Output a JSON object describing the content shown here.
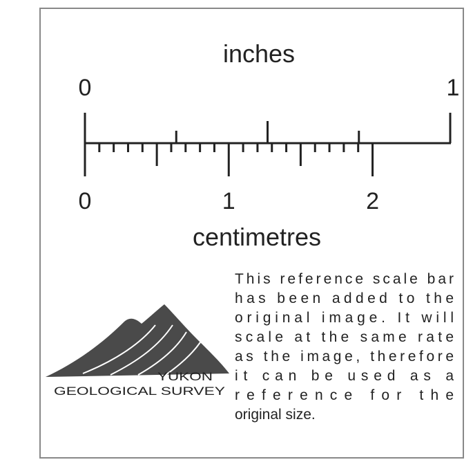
{
  "scale_bar": {
    "inches": {
      "title": "inches",
      "labels": [
        "0",
        "1"
      ]
    },
    "centimetres": {
      "title": "centimetres",
      "labels": [
        "0",
        "1",
        "2"
      ]
    }
  },
  "logo": {
    "line1": "YUKON",
    "line2": "GEOLOGICAL SURVEY"
  },
  "note": {
    "lines": [
      "This reference scale bar",
      "has been added to the",
      "original image. It will",
      "scale at the same rate",
      "as the image, therefore",
      "it can be used as a",
      "reference for the",
      "original size."
    ]
  }
}
